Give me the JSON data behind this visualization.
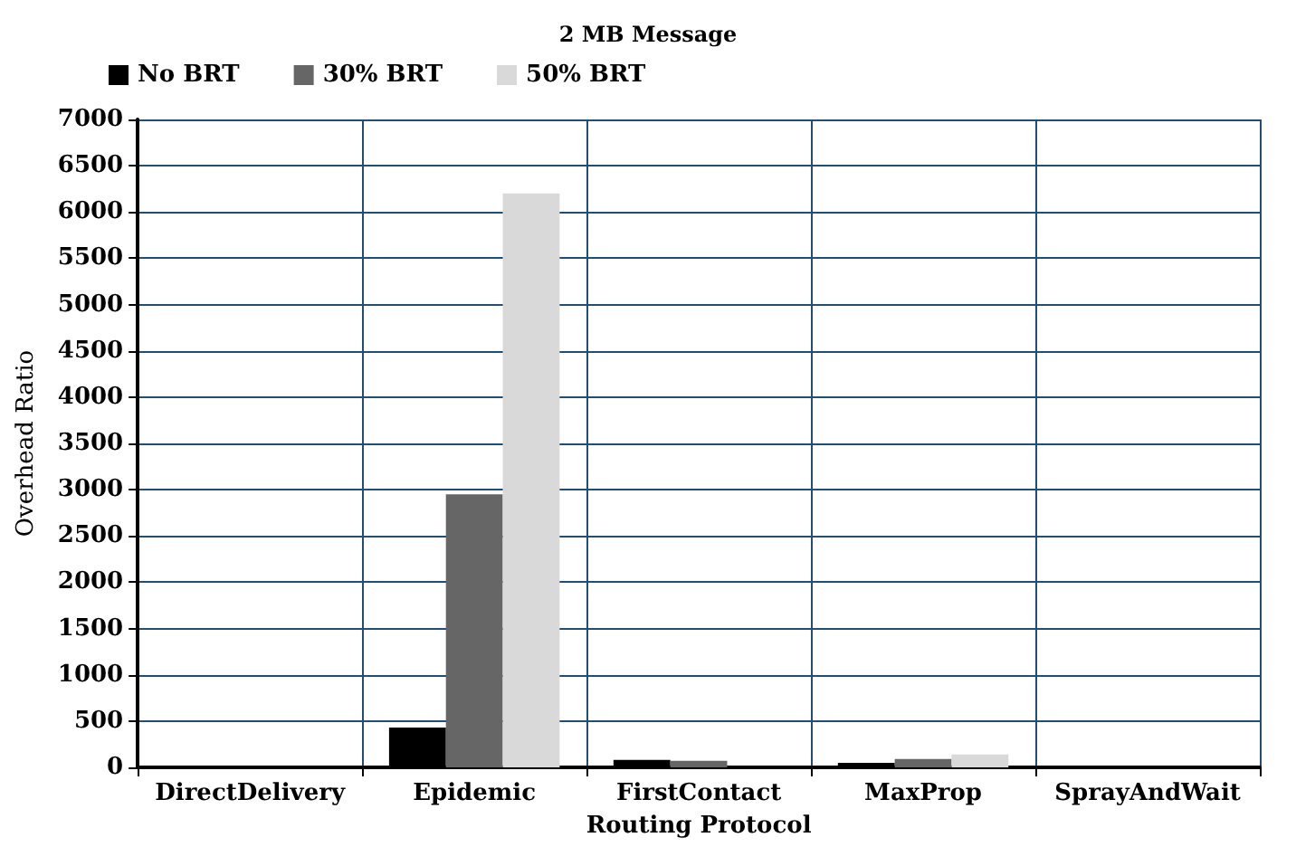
{
  "chart_data": {
    "type": "bar",
    "title": "2 MB Message",
    "xlabel": "Routing Protocol",
    "ylabel": "Overhead Ratio",
    "categories": [
      "DirectDelivery",
      "Epidemic",
      "FirstContact",
      "MaxProp",
      "SprayAndWait"
    ],
    "series": [
      {
        "name": "No BRT",
        "color": "#000000",
        "values": [
          0,
          430,
          80,
          50,
          0
        ]
      },
      {
        "name": "30% BRT",
        "color": "#666666",
        "values": [
          0,
          2950,
          70,
          90,
          0
        ]
      },
      {
        "name": "50% BRT",
        "color": "#d9d9d9",
        "values": [
          0,
          6200,
          0,
          140,
          0
        ]
      }
    ],
    "ylim": [
      0,
      7000
    ],
    "yticks": [
      0,
      500,
      1000,
      1500,
      2000,
      2500,
      3000,
      3500,
      4000,
      4500,
      5000,
      5500,
      6000,
      6500,
      7000
    ],
    "grid": true,
    "legend": "top left"
  }
}
